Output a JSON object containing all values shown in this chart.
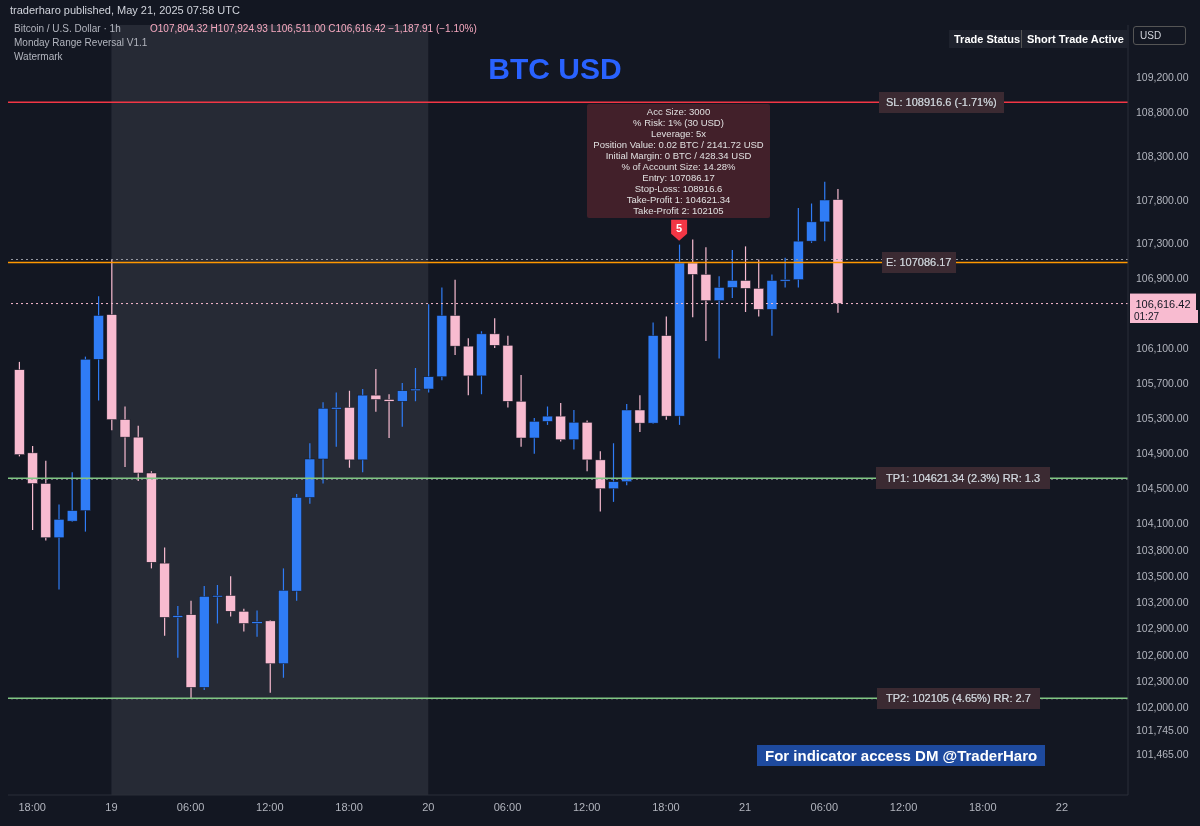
{
  "chart_data": {
    "type": "candlestick",
    "title": "BTC USD",
    "annotations": [
      "traderharo published, May 21, 2025 07:58 UTC",
      "Bitcoin / U.S. Dollar · 1h",
      "O107,804.32 H107,924.93 L106,511.00 C106,616.42 −1,187.91 (−1.10%)",
      "Monday Range Reversal V1.1",
      "Watermark",
      "Trade Status",
      "Short Trade Active",
      "USD",
      "Acc Size: 3000\n% Risk: 1% (30 USD)\nLeverage: 5x\nPosition Value: 0.02 BTC / 2141.72 USD\nInitial Margin: 0 BTC / 428.34 USD\n% of Account Size: 14.28%\nEntry: 107086.17\nStop-Loss: 108916.6\nTake-Profit 1: 104621.34\nTake-Profit 2: 102105",
      {
        "text": "5",
        "x": "2025-05-20T19:00",
        "y": 107290
      },
      "01:27",
      "For indicator access DM @TraderHaro"
    ],
    "x": [
      "2025-05-18T17:00",
      "2025-05-18T18:00",
      "2025-05-18T19:00",
      "2025-05-18T20:00",
      "2025-05-18T21:00",
      "2025-05-18T22:00",
      "2025-05-18T23:00",
      "2025-05-19T00:00",
      "2025-05-19T01:00",
      "2025-05-19T02:00",
      "2025-05-19T03:00",
      "2025-05-19T04:00",
      "2025-05-19T05:00",
      "2025-05-19T06:00",
      "2025-05-19T07:00",
      "2025-05-19T08:00",
      "2025-05-19T09:00",
      "2025-05-19T10:00",
      "2025-05-19T11:00",
      "2025-05-19T12:00",
      "2025-05-19T13:00",
      "2025-05-19T14:00",
      "2025-05-19T15:00",
      "2025-05-19T16:00",
      "2025-05-19T17:00",
      "2025-05-19T18:00",
      "2025-05-19T19:00",
      "2025-05-19T20:00",
      "2025-05-19T21:00",
      "2025-05-19T22:00",
      "2025-05-19T23:00",
      "2025-05-20T00:00",
      "2025-05-20T01:00",
      "2025-05-20T02:00",
      "2025-05-20T03:00",
      "2025-05-20T04:00",
      "2025-05-20T05:00",
      "2025-05-20T06:00",
      "2025-05-20T07:00",
      "2025-05-20T08:00",
      "2025-05-20T09:00",
      "2025-05-20T10:00",
      "2025-05-20T11:00",
      "2025-05-20T12:00",
      "2025-05-20T13:00",
      "2025-05-20T14:00",
      "2025-05-20T15:00",
      "2025-05-20T16:00",
      "2025-05-20T17:00",
      "2025-05-20T18:00",
      "2025-05-20T19:00",
      "2025-05-20T20:00",
      "2025-05-20T21:00",
      "2025-05-20T22:00",
      "2025-05-20T23:00",
      "2025-05-21T00:00",
      "2025-05-21T01:00",
      "2025-05-21T02:00",
      "2025-05-21T03:00",
      "2025-05-21T04:00",
      "2025-05-21T05:00",
      "2025-05-21T06:00",
      "2025-05-21T07:00"
    ],
    "ohlc": [
      [
        105860,
        105950,
        104870,
        104890
      ],
      [
        104910,
        104990,
        104030,
        104560
      ],
      [
        104560,
        104820,
        103910,
        103940
      ],
      [
        103940,
        104320,
        103350,
        104150
      ],
      [
        104130,
        104690,
        104120,
        104250
      ],
      [
        104250,
        106010,
        104010,
        105980
      ],
      [
        105980,
        106700,
        105510,
        106480
      ],
      [
        106490,
        107120,
        105170,
        105290
      ],
      [
        105290,
        105440,
        104750,
        105090
      ],
      [
        105090,
        105220,
        104590,
        104680
      ],
      [
        104680,
        104700,
        103590,
        103660
      ],
      [
        103650,
        103830,
        102820,
        103030
      ],
      [
        103030,
        103160,
        102570,
        103050
      ],
      [
        103060,
        103220,
        102100,
        102230
      ],
      [
        102230,
        103390,
        102200,
        103270
      ],
      [
        103270,
        103400,
        102960,
        103280
      ],
      [
        103280,
        103500,
        103040,
        103100
      ],
      [
        103100,
        103130,
        102870,
        102960
      ],
      [
        102960,
        103110,
        102810,
        102980
      ],
      [
        102990,
        103000,
        102170,
        102500
      ],
      [
        102500,
        103590,
        102340,
        103340
      ],
      [
        103330,
        104440,
        103220,
        104400
      ],
      [
        104400,
        105020,
        104330,
        104840
      ],
      [
        104840,
        105490,
        104560,
        105420
      ],
      [
        105410,
        105600,
        104980,
        105430
      ],
      [
        105430,
        105620,
        104740,
        104830
      ],
      [
        104830,
        105640,
        104690,
        105570
      ],
      [
        105570,
        105870,
        105380,
        105520
      ],
      [
        105520,
        105580,
        105080,
        105500
      ],
      [
        105500,
        105710,
        105210,
        105620
      ],
      [
        105620,
        105880,
        105500,
        105640
      ],
      [
        105640,
        106610,
        105600,
        105780
      ],
      [
        105780,
        106800,
        105740,
        106480
      ],
      [
        106480,
        106890,
        106030,
        106130
      ],
      [
        106130,
        106220,
        105570,
        105790
      ],
      [
        105790,
        106300,
        105580,
        106270
      ],
      [
        106270,
        106450,
        106110,
        106140
      ],
      [
        106140,
        106250,
        105430,
        105500
      ],
      [
        105500,
        105800,
        104980,
        105080
      ],
      [
        105080,
        105310,
        104900,
        105270
      ],
      [
        105270,
        105440,
        105230,
        105330
      ],
      [
        105330,
        105480,
        105040,
        105060
      ],
      [
        105060,
        105400,
        104950,
        105260
      ],
      [
        105260,
        105280,
        104700,
        104830
      ],
      [
        104830,
        104930,
        104240,
        104500
      ],
      [
        104500,
        105020,
        104350,
        104580
      ],
      [
        104580,
        105470,
        104540,
        105400
      ],
      [
        105400,
        105570,
        105150,
        105250
      ],
      [
        105250,
        106400,
        105240,
        106250
      ],
      [
        106250,
        106470,
        105290,
        105330
      ],
      [
        105330,
        107290,
        105230,
        107080
      ],
      [
        107080,
        107350,
        106460,
        106950
      ],
      [
        106950,
        107260,
        106190,
        106650
      ],
      [
        106650,
        106930,
        105990,
        106800
      ],
      [
        106800,
        107230,
        106680,
        106880
      ],
      [
        106880,
        107270,
        106520,
        106790
      ],
      [
        106790,
        107120,
        106470,
        106550
      ],
      [
        106550,
        106950,
        106250,
        106880
      ],
      [
        106880,
        107140,
        106800,
        106890
      ],
      [
        106890,
        107710,
        106800,
        107330
      ],
      [
        107330,
        107760,
        107310,
        107550
      ],
      [
        107550,
        108010,
        107330,
        107800
      ],
      [
        107804.32,
        107924.93,
        106511.0,
        106616.42
      ]
    ],
    "colors": [
      "#f8bbd0",
      "#f8bbd0",
      "#f8bbd0",
      "#2f7cf6",
      "#2f7cf6",
      "#2f7cf6",
      "#2f7cf6",
      "#f8bbd0",
      "#f8bbd0",
      "#f8bbd0",
      "#f8bbd0",
      "#f8bbd0",
      "#2f7cf6",
      "#f8bbd0",
      "#2f7cf6",
      "#2f7cf6",
      "#f8bbd0",
      "#f8bbd0",
      "#2f7cf6",
      "#f8bbd0",
      "#2f7cf6",
      "#2f7cf6",
      "#2f7cf6",
      "#2f7cf6",
      "#2f7cf6",
      "#f8bbd0",
      "#2f7cf6",
      "#f8bbd0",
      "#f8bbd0",
      "#2f7cf6",
      "#2f7cf6",
      "#2f7cf6",
      "#2f7cf6",
      "#f8bbd0",
      "#f8bbd0",
      "#2f7cf6",
      "#f8bbd0",
      "#f8bbd0",
      "#f8bbd0",
      "#2f7cf6",
      "#2f7cf6",
      "#f8bbd0",
      "#2f7cf6",
      "#f8bbd0",
      "#f8bbd0",
      "#2f7cf6",
      "#2f7cf6",
      "#f8bbd0",
      "#2f7cf6",
      "#f8bbd0",
      "#2f7cf6",
      "#f8bbd0",
      "#f8bbd0",
      "#2f7cf6",
      "#2f7cf6",
      "#f8bbd0",
      "#f8bbd0",
      "#2f7cf6",
      "#2f7cf6",
      "#2f7cf6",
      "#2f7cf6",
      "#2f7cf6",
      "#f8bbd0"
    ],
    "xlim": [
      "2025-05-18T16:10",
      "2025-05-22T05:00"
    ],
    "xticks": [
      {
        "value": "2025-05-18T18:00",
        "label": "18:00"
      },
      {
        "value": "2025-05-19T00:00",
        "label": "19"
      },
      {
        "value": "2025-05-19T06:00",
        "label": "06:00"
      },
      {
        "value": "2025-05-19T12:00",
        "label": "12:00"
      },
      {
        "value": "2025-05-19T18:00",
        "label": "18:00"
      },
      {
        "value": "2025-05-20T00:00",
        "label": "20"
      },
      {
        "value": "2025-05-20T06:00",
        "label": "06:00"
      },
      {
        "value": "2025-05-20T12:00",
        "label": "12:00"
      },
      {
        "value": "2025-05-20T18:00",
        "label": "18:00"
      },
      {
        "value": "2025-05-21T00:00",
        "label": "21"
      },
      {
        "value": "2025-05-21T06:00",
        "label": "06:00"
      },
      {
        "value": "2025-05-21T12:00",
        "label": "12:00"
      },
      {
        "value": "2025-05-21T18:00",
        "label": "18:00"
      },
      {
        "value": "2025-05-22T00:00",
        "label": "22"
      }
    ],
    "ylim": [
      101000,
      109800
    ],
    "yticks": [
      {
        "value": 109200,
        "label": "109,200.00"
      },
      {
        "value": 108800,
        "label": "108,800.00"
      },
      {
        "value": 108300,
        "label": "108,300.00"
      },
      {
        "value": 107800,
        "label": "107,800.00"
      },
      {
        "value": 107300,
        "label": "107,300.00"
      },
      {
        "value": 106900,
        "label": "106,900.00"
      },
      {
        "value": 106100,
        "label": "106,100.00"
      },
      {
        "value": 105700,
        "label": "105,700.00"
      },
      {
        "value": 105300,
        "label": "105,300.00"
      },
      {
        "value": 104900,
        "label": "104,900.00"
      },
      {
        "value": 104500,
        "label": "104,500.00"
      },
      {
        "value": 104100,
        "label": "104,100.00"
      },
      {
        "value": 103800,
        "label": "103,800.00"
      },
      {
        "value": 103500,
        "label": "103,500.00"
      },
      {
        "value": 103200,
        "label": "103,200.00"
      },
      {
        "value": 102900,
        "label": "102,900.00"
      },
      {
        "value": 102600,
        "label": "102,600.00"
      },
      {
        "value": 102300,
        "label": "102,300.00"
      },
      {
        "value": 102000,
        "label": "102,000.00"
      },
      {
        "value": 101745,
        "label": "101,745.00"
      },
      {
        "value": 101465,
        "label": "101,465.00"
      }
    ],
    "ref_lines": [
      {
        "axis": "y",
        "value": 108916.6,
        "label": "SL: 108916.6 (-1.71%)",
        "color": "#f23645"
      },
      {
        "axis": "y",
        "value": 107086.17,
        "label": "E: 107086.17",
        "color": "#ff9800"
      },
      {
        "axis": "y",
        "value": 104621.34,
        "label": "TP1: 104621.34 (2.3%) RR: 1.3",
        "color": "#81c784"
      },
      {
        "axis": "y",
        "value": 102105,
        "label": "TP2: 102105 (4.65%) RR: 2.7",
        "color": "#81c784"
      },
      {
        "axis": "y",
        "value": 106616.42,
        "label": "106,616.42",
        "color": "#f8bbd0",
        "line_style": "dotted"
      },
      {
        "axis": "y",
        "value": 107120,
        "color": "#9598a1",
        "line_style": "dotted"
      },
      {
        "axis": "y",
        "value": 104610,
        "color": "#9598a1",
        "line_style": "dotted"
      },
      {
        "axis": "y",
        "value": 102100,
        "color": "#9598a1",
        "line_style": "dotted"
      }
    ],
    "bands": [
      {
        "axis": "x",
        "from": "2025-05-19T00:00",
        "to": "2025-05-20T00:00",
        "color": "#363a45"
      }
    ]
  }
}
